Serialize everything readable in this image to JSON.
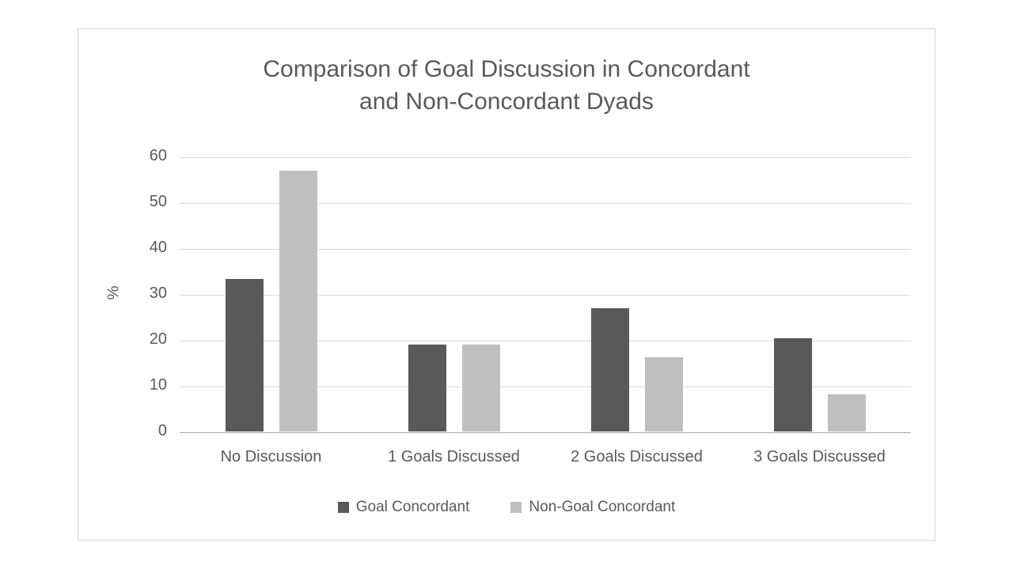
{
  "chart": {
    "title_line1": "Comparison of Goal Discussion in Concordant",
    "title_line2": "and Non-Concordant Dyads",
    "ylabel": "%"
  },
  "chart_data": {
    "type": "bar",
    "title": "Comparison of Goal Discussion in Concordant and Non-Concordant Dyads",
    "categories": [
      "No Discussion",
      "1 Goals Discussed",
      "2 Goals Discussed",
      "3 Goals Discussed"
    ],
    "series": [
      {
        "name": "Goal Concordant",
        "color": "#595959",
        "values": [
          33.3,
          19.0,
          26.9,
          20.3
        ]
      },
      {
        "name": "Non-Goal Concordant",
        "color": "#bfbfbf",
        "values": [
          56.9,
          18.9,
          16.2,
          8.1
        ]
      }
    ],
    "xlabel": "",
    "ylabel": "%",
    "ylim": [
      0,
      60
    ],
    "yticks": [
      0,
      10,
      20,
      30,
      40,
      50,
      60
    ],
    "grid": true,
    "legend_position": "bottom",
    "colors": {
      "grid": "#d9d9d9",
      "axis": "#a6a6a6",
      "text": "#595959"
    }
  }
}
